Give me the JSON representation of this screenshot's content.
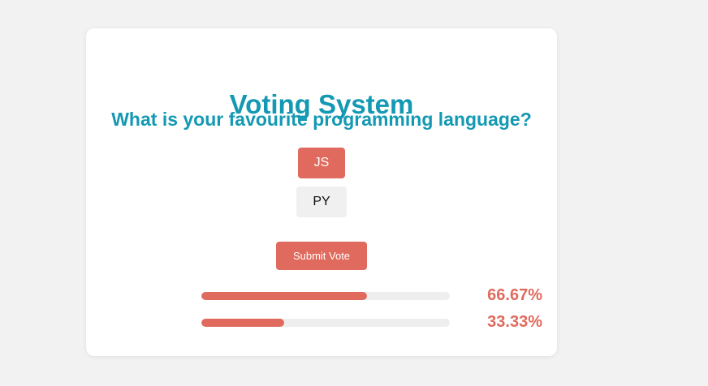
{
  "poll": {
    "title": "Voting System",
    "question": "What is your favourite programming language?",
    "options": [
      {
        "label": "JS",
        "selected": true
      },
      {
        "label": "PY",
        "selected": false
      }
    ],
    "submit_label": "Submit Vote",
    "results": [
      {
        "fraction": 0.6667,
        "percent_text": "66.67%"
      },
      {
        "fraction": 0.3333,
        "percent_text": "33.33%"
      }
    ]
  },
  "colors": {
    "heading": "#1499b3",
    "accent": "#e06a5e",
    "page_background": "#f2f2f2",
    "card_background": "#ffffff",
    "track": "#eeeeee"
  }
}
